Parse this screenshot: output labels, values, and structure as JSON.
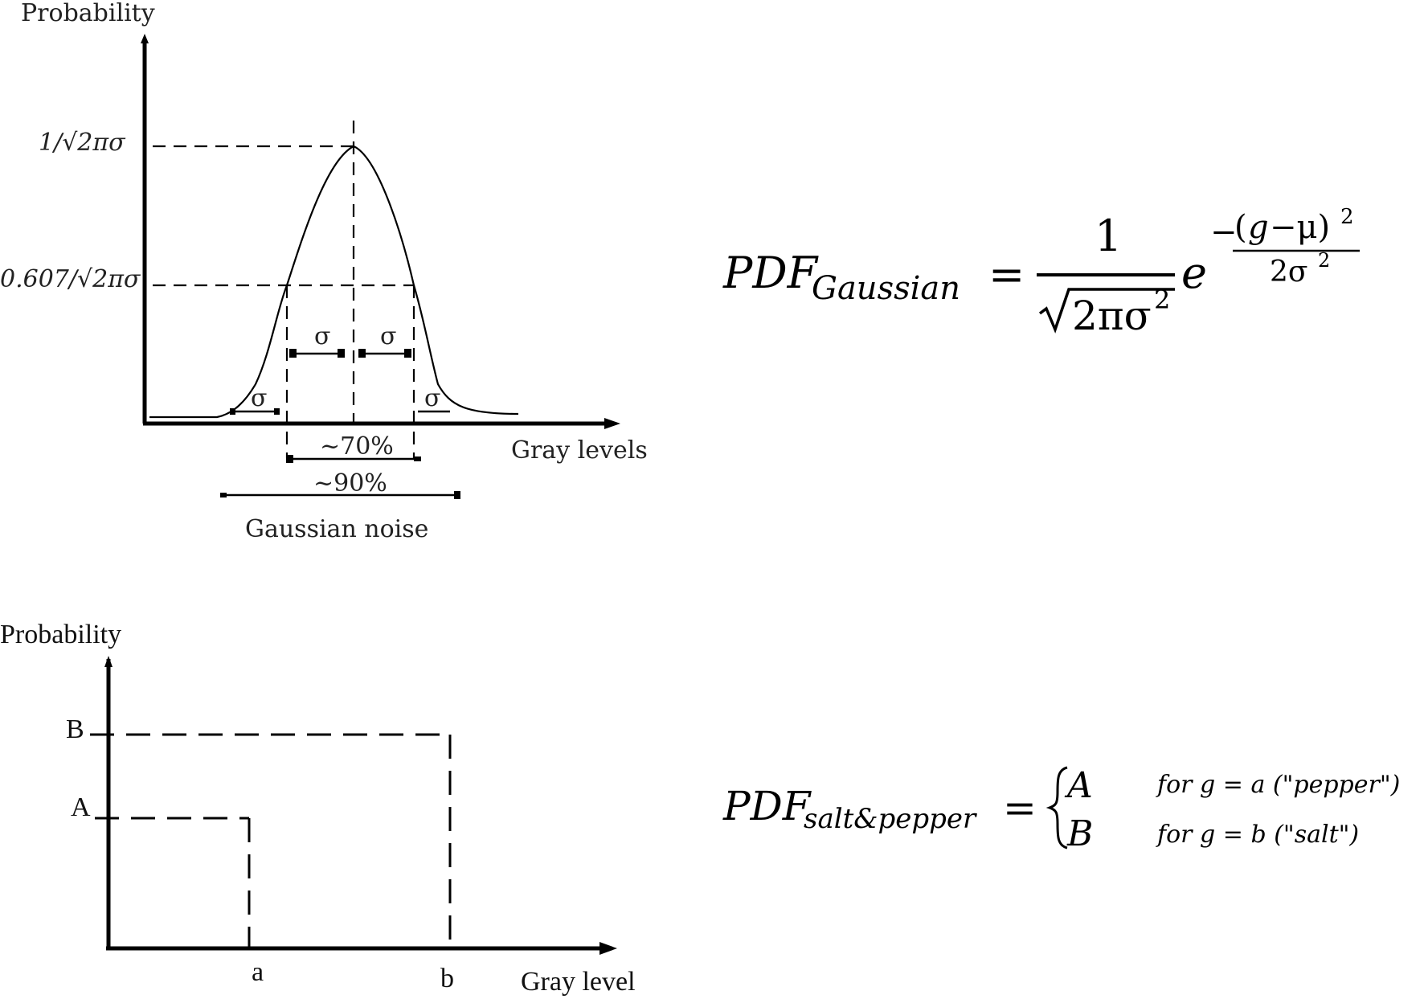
{
  "gaussian_diagram": {
    "y_axis_label": "Probability",
    "x_axis_label": "Gray levels",
    "peak_label": "1/√2πσ",
    "shoulder_label": "0.607/√2πσ",
    "sigma_symbol": "σ",
    "range_70": "~70%",
    "range_90": "~90%",
    "caption": "Gaussian noise"
  },
  "gaussian_formula": {
    "lhs": "PDF",
    "lhs_subscript": "Gaussian",
    "equals": "=",
    "numerator": "1",
    "denominator": "2πσ",
    "denominator_exp": "2",
    "base": "e",
    "exp_sign": "−",
    "exp_num_open": "(",
    "exp_num_var": "g",
    "exp_num_rest": "−μ)",
    "exp_num_pow": "2",
    "exp_den": "2σ",
    "exp_den_pow": "2"
  },
  "saltpepper_diagram": {
    "y_axis_label": "Probability",
    "x_axis_label": "Gray level",
    "level_B": "B",
    "level_A": "A",
    "tick_a": "a",
    "tick_b": "b"
  },
  "saltpepper_formula": {
    "lhs": "PDF",
    "lhs_subscript": "salt&pepper",
    "equals": "=",
    "case1_value": "A",
    "case1_condition": "for g = a (\"pepper\")",
    "case2_value": "B",
    "case2_condition": "for g = b (\"salt\")"
  }
}
